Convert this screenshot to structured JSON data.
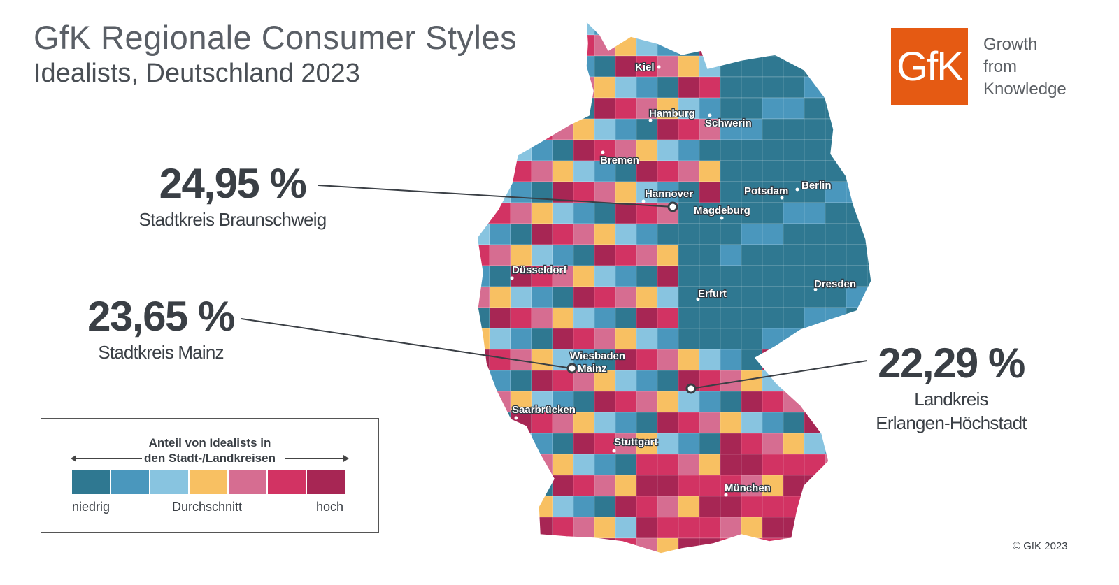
{
  "header": {
    "title": "GfK Regionale Consumer Styles",
    "subtitle": "Idealists, Deutschland 2023"
  },
  "logo": {
    "mark": "GfK",
    "tagline": [
      "Growth",
      "from",
      "Knowledge"
    ],
    "color": "#e55a13"
  },
  "callouts": [
    {
      "value": "24,95 %",
      "label": "Stadtkreis Braunschweig"
    },
    {
      "value": "23,65 %",
      "label": "Stadtkreis Mainz"
    },
    {
      "value": "22,29 %",
      "label_lines": [
        "Landkreis",
        "Erlangen-Höchstadt"
      ]
    }
  ],
  "cities": [
    "Kiel",
    "Hamburg",
    "Schwerin",
    "Bremen",
    "Hannover",
    "Potsdam",
    "Berlin",
    "Magdeburg",
    "Düsseldorf",
    "Erfurt",
    "Dresden",
    "Wiesbaden",
    "Mainz",
    "Saarbrücken",
    "Stuttgart",
    "München"
  ],
  "legend": {
    "title_lines": [
      "Anteil von Idealists in",
      "den Stadt-/Landkreisen"
    ],
    "low_label": "niedrig",
    "mid_label": "Durchschnitt",
    "high_label": "hoch",
    "colors": [
      "#2f7891",
      "#4a97bd",
      "#88c4e0",
      "#f8c062",
      "#d66d91",
      "#d23363",
      "#a72654"
    ]
  },
  "copyright": "© GfK 2023"
}
